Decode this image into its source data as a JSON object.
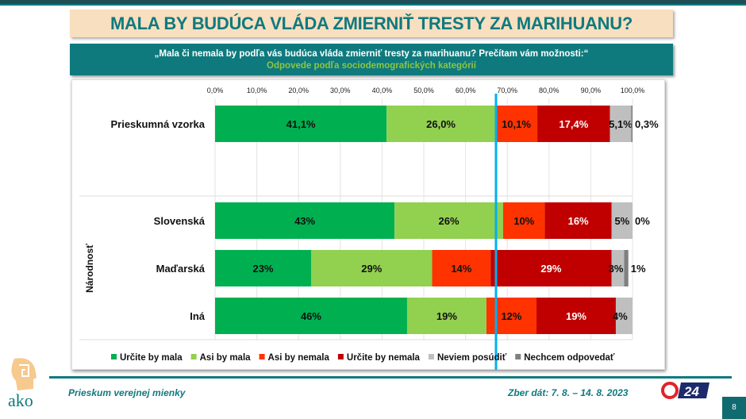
{
  "title": "MALA BY BUDÚCA VLÁDA ZMIERNIŤ TRESTY ZA MARIHUANU?",
  "question": "„Mala či nemala by podľa vás budúca vláda zmierniť tresty za marihuanu? Prečítam vám možnosti:“",
  "subtitle": "Odpovede podľa sociodemografických kategórií",
  "footer": {
    "left": "Prieskum verejnej mienky",
    "right": "Zber dát: 7. 8. – 14. 8. 2023",
    "page": "8",
    "logo_text": "ako",
    "tv_logo": "24"
  },
  "chart_data": {
    "type": "bar",
    "orientation": "horizontal-stacked",
    "xlim": [
      0,
      100
    ],
    "ticks": [
      "0,0%",
      "10,0%",
      "20,0%",
      "30,0%",
      "40,0%",
      "50,0%",
      "60,0%",
      "70,0%",
      "80,0%",
      "90,0%",
      "100,0%"
    ],
    "group_label": "Národnosť",
    "reference_line": 67.3,
    "reference_color": "#00b0f0",
    "legend_position": "bottom",
    "series": [
      {
        "name": "Určite by mala",
        "color": "#00b050"
      },
      {
        "name": "Asi by mala",
        "color": "#92d050"
      },
      {
        "name": "Asi by nemala",
        "color": "#ff3300"
      },
      {
        "name": "Určite by nemala",
        "color": "#c00000"
      },
      {
        "name": "Neviem posúdiť",
        "color": "#bfbfbf"
      },
      {
        "name": "Nechcem odpovedať",
        "color": "#808080"
      }
    ],
    "rows": [
      {
        "label": "Prieskumná vzorka",
        "values": [
          41.1,
          26.0,
          10.1,
          17.4,
          5.1,
          0.3
        ],
        "labels": [
          "41,1%",
          "26,0%",
          "10,1%",
          "17,4%",
          "5,1%",
          "0,3%"
        ]
      },
      {
        "label": "Slovenská",
        "values": [
          43,
          26,
          10,
          16,
          5,
          0
        ],
        "labels": [
          "43%",
          "26%",
          "10%",
          "16%",
          "5%",
          "0%"
        ]
      },
      {
        "label": "Maďarská",
        "values": [
          23,
          29,
          14,
          29,
          3,
          1
        ],
        "labels": [
          "23%",
          "29%",
          "14%",
          "29%",
          "3%",
          "1%"
        ]
      },
      {
        "label": "Iná",
        "values": [
          46,
          19,
          12,
          19,
          4,
          0
        ],
        "labels": [
          "46%",
          "19%",
          "12%",
          "19%",
          "4%",
          ""
        ]
      }
    ]
  }
}
